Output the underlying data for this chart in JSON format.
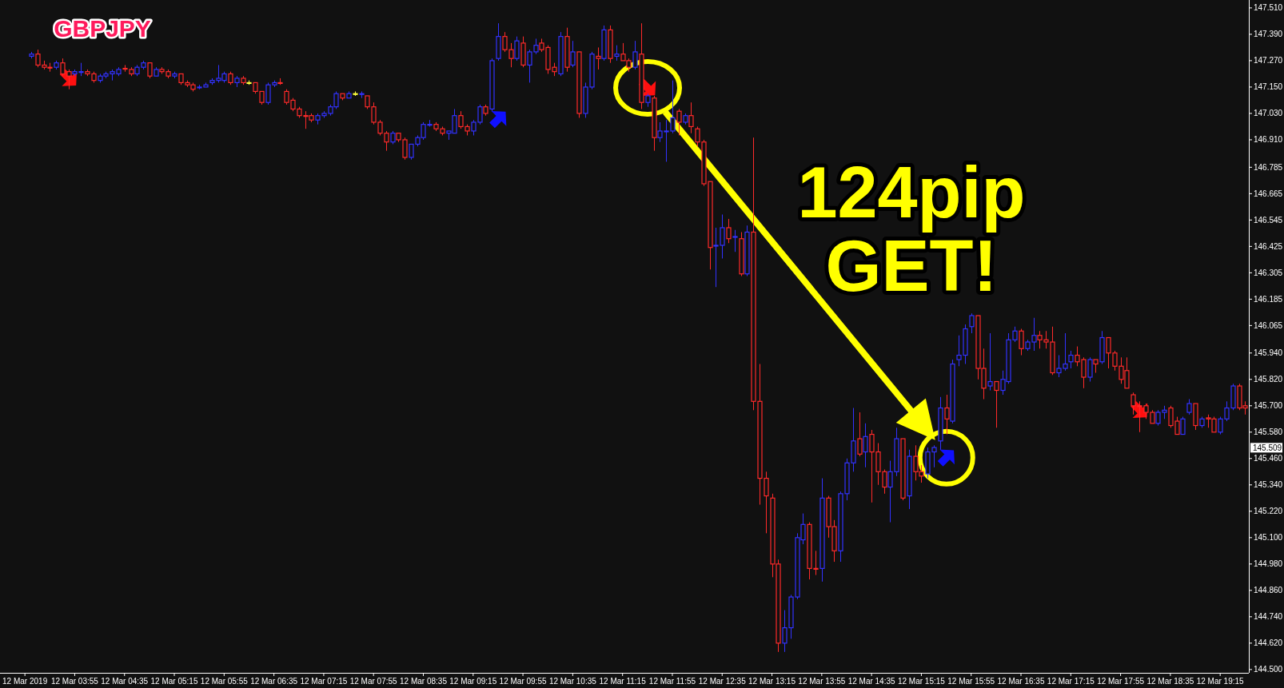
{
  "chart_data": {
    "type": "candlestick",
    "title": "GBPJPY",
    "annotations": [
      "124pip\nGET!",
      {
        "text": "145.509",
        "y": 145.509
      }
    ],
    "x": [
      "2019-03-12T03:20",
      "2019-03-12T03:25",
      "2019-03-12T03:30",
      "2019-03-12T03:35",
      "2019-03-12T03:40",
      "2019-03-12T03:45",
      "2019-03-12T03:50",
      "2019-03-12T03:55",
      "2019-03-12T04:00",
      "2019-03-12T04:05",
      "2019-03-12T04:10",
      "2019-03-12T04:15",
      "2019-03-12T04:20",
      "2019-03-12T04:25",
      "2019-03-12T04:30",
      "2019-03-12T04:35",
      "2019-03-12T04:40",
      "2019-03-12T04:45",
      "2019-03-12T04:50",
      "2019-03-12T04:55",
      "2019-03-12T05:00",
      "2019-03-12T05:05",
      "2019-03-12T05:10",
      "2019-03-12T05:15",
      "2019-03-12T05:20",
      "2019-03-12T05:25",
      "2019-03-12T05:30",
      "2019-03-12T05:35",
      "2019-03-12T05:40",
      "2019-03-12T05:45",
      "2019-03-12T05:50",
      "2019-03-12T05:55",
      "2019-03-12T06:00",
      "2019-03-12T06:05",
      "2019-03-12T06:10",
      "2019-03-12T06:15",
      "2019-03-12T06:20",
      "2019-03-12T06:25",
      "2019-03-12T06:30",
      "2019-03-12T06:35",
      "2019-03-12T06:40",
      "2019-03-12T06:45",
      "2019-03-12T06:50",
      "2019-03-12T06:55",
      "2019-03-12T07:00",
      "2019-03-12T07:05",
      "2019-03-12T07:10",
      "2019-03-12T07:15",
      "2019-03-12T07:20",
      "2019-03-12T07:25",
      "2019-03-12T07:30",
      "2019-03-12T07:35",
      "2019-03-12T07:40",
      "2019-03-12T07:45",
      "2019-03-12T07:50",
      "2019-03-12T07:55",
      "2019-03-12T08:00",
      "2019-03-12T08:05",
      "2019-03-12T08:10",
      "2019-03-12T08:15",
      "2019-03-12T08:20",
      "2019-03-12T08:25",
      "2019-03-12T08:30",
      "2019-03-12T08:35",
      "2019-03-12T08:40",
      "2019-03-12T08:45",
      "2019-03-12T08:50",
      "2019-03-12T08:55",
      "2019-03-12T09:00",
      "2019-03-12T09:05",
      "2019-03-12T09:10",
      "2019-03-12T09:15",
      "2019-03-12T09:20",
      "2019-03-12T09:25",
      "2019-03-12T09:30",
      "2019-03-12T09:35",
      "2019-03-12T09:40",
      "2019-03-12T09:45",
      "2019-03-12T09:50",
      "2019-03-12T09:55",
      "2019-03-12T10:00",
      "2019-03-12T10:05",
      "2019-03-12T10:10",
      "2019-03-12T10:15",
      "2019-03-12T10:20",
      "2019-03-12T10:25",
      "2019-03-12T10:30",
      "2019-03-12T10:35",
      "2019-03-12T10:40",
      "2019-03-12T10:45",
      "2019-03-12T10:50",
      "2019-03-12T10:55",
      "2019-03-12T11:00",
      "2019-03-12T11:05",
      "2019-03-12T11:10",
      "2019-03-12T11:15",
      "2019-03-12T11:20",
      "2019-03-12T11:25",
      "2019-03-12T11:30",
      "2019-03-12T11:35",
      "2019-03-12T11:40",
      "2019-03-12T11:45",
      "2019-03-12T11:50",
      "2019-03-12T11:55",
      "2019-03-12T12:00",
      "2019-03-12T12:05",
      "2019-03-12T12:10",
      "2019-03-12T12:15",
      "2019-03-12T12:20",
      "2019-03-12T12:25",
      "2019-03-12T12:30",
      "2019-03-12T12:35",
      "2019-03-12T12:40",
      "2019-03-12T12:45",
      "2019-03-12T12:50",
      "2019-03-12T12:55",
      "2019-03-12T13:00",
      "2019-03-12T13:05",
      "2019-03-12T13:10",
      "2019-03-12T13:15",
      "2019-03-12T13:20",
      "2019-03-12T13:25",
      "2019-03-12T13:30",
      "2019-03-12T13:35",
      "2019-03-12T13:40",
      "2019-03-12T13:45",
      "2019-03-12T13:50",
      "2019-03-12T13:55",
      "2019-03-12T14:00",
      "2019-03-12T14:05",
      "2019-03-12T14:10",
      "2019-03-12T14:15",
      "2019-03-12T14:20",
      "2019-03-12T14:25",
      "2019-03-12T14:30",
      "2019-03-12T14:35",
      "2019-03-12T14:40",
      "2019-03-12T14:45",
      "2019-03-12T14:50",
      "2019-03-12T14:55",
      "2019-03-12T15:00",
      "2019-03-12T15:05",
      "2019-03-12T15:10",
      "2019-03-12T15:15",
      "2019-03-12T15:20",
      "2019-03-12T15:25",
      "2019-03-12T15:30",
      "2019-03-12T15:35",
      "2019-03-12T15:40",
      "2019-03-12T15:45",
      "2019-03-12T15:50",
      "2019-03-12T15:55",
      "2019-03-12T16:00",
      "2019-03-12T16:05",
      "2019-03-12T16:10",
      "2019-03-12T16:15",
      "2019-03-12T16:20",
      "2019-03-12T16:25",
      "2019-03-12T16:30",
      "2019-03-12T16:35",
      "2019-03-12T16:40",
      "2019-03-12T16:45",
      "2019-03-12T16:50",
      "2019-03-12T16:55",
      "2019-03-12T17:00",
      "2019-03-12T17:05",
      "2019-03-12T17:10",
      "2019-03-12T17:15",
      "2019-03-12T17:20",
      "2019-03-12T17:25",
      "2019-03-12T17:30",
      "2019-03-12T17:35",
      "2019-03-12T17:40",
      "2019-03-12T17:45",
      "2019-03-12T17:50",
      "2019-03-12T17:55",
      "2019-03-12T18:00",
      "2019-03-12T18:05",
      "2019-03-12T18:10",
      "2019-03-12T18:15",
      "2019-03-12T18:20",
      "2019-03-12T18:25",
      "2019-03-12T18:30",
      "2019-03-12T18:35",
      "2019-03-12T18:40",
      "2019-03-12T18:45",
      "2019-03-12T18:50",
      "2019-03-12T18:55",
      "2019-03-12T19:00",
      "2019-03-12T19:05",
      "2019-03-12T19:10",
      "2019-03-12T19:15",
      "2019-03-12T19:20",
      "2019-03-12T19:25",
      "2019-03-12T19:30",
      "2019-03-12T19:35"
    ],
    "ohlc": [
      [
        147.29,
        147.31,
        147.28,
        147.3
      ],
      [
        147.3,
        147.32,
        147.24,
        147.25
      ],
      [
        147.25,
        147.27,
        147.23,
        147.24
      ],
      [
        147.24,
        147.26,
        147.22,
        147.24
      ],
      [
        147.24,
        147.27,
        147.23,
        147.26
      ],
      [
        147.26,
        147.28,
        147.2,
        147.21
      ],
      [
        147.22,
        147.23,
        147.14,
        147.2
      ],
      [
        147.21,
        147.23,
        147.2,
        147.22
      ],
      [
        147.22,
        147.26,
        147.2,
        147.22
      ],
      [
        147.22,
        147.23,
        147.2,
        147.21
      ],
      [
        147.21,
        147.22,
        147.17,
        147.18
      ],
      [
        147.18,
        147.21,
        147.17,
        147.2
      ],
      [
        147.2,
        147.22,
        147.19,
        147.21
      ],
      [
        147.21,
        147.23,
        147.18,
        147.22
      ],
      [
        147.21,
        147.24,
        147.2,
        147.23
      ],
      [
        147.235,
        147.25,
        147.22,
        147.235
      ],
      [
        147.23,
        147.24,
        147.2,
        147.21
      ],
      [
        147.21,
        147.25,
        147.2,
        147.24
      ],
      [
        147.24,
        147.27,
        147.23,
        147.26
      ],
      [
        147.26,
        147.26,
        147.19,
        147.2
      ],
      [
        147.2,
        147.24,
        147.2,
        147.23
      ],
      [
        147.23,
        147.24,
        147.21,
        147.22
      ],
      [
        147.22,
        147.23,
        147.19,
        147.2
      ],
      [
        147.2,
        147.22,
        147.19,
        147.21
      ],
      [
        147.21,
        147.21,
        147.16,
        147.17
      ],
      [
        147.17,
        147.18,
        147.15,
        147.16
      ],
      [
        147.16,
        147.17,
        147.13,
        147.14
      ],
      [
        147.15,
        147.16,
        147.14,
        147.15
      ],
      [
        147.15,
        147.17,
        147.15,
        147.16
      ],
      [
        147.17,
        147.19,
        147.16,
        147.18
      ],
      [
        147.18,
        147.25,
        147.17,
        147.19
      ],
      [
        147.18,
        147.22,
        147.17,
        147.21
      ],
      [
        147.21,
        147.22,
        147.16,
        147.17
      ],
      [
        147.17,
        147.2,
        147.15,
        147.19
      ],
      [
        147.19,
        147.2,
        147.16,
        147.17
      ],
      [
        147.17,
        147.18,
        147.16,
        147.17
      ],
      [
        147.17,
        147.17,
        147.12,
        147.13
      ],
      [
        147.13,
        147.13,
        147.07,
        147.08
      ],
      [
        147.08,
        147.17,
        147.07,
        147.16
      ],
      [
        147.16,
        147.18,
        147.15,
        147.17
      ],
      [
        147.17,
        147.19,
        147.16,
        147.17
      ],
      [
        147.13,
        147.14,
        147.07,
        147.08
      ],
      [
        147.09,
        147.1,
        147.04,
        147.05
      ],
      [
        147.05,
        147.06,
        147.01,
        147.02
      ],
      [
        147.02,
        147.04,
        146.96,
        147.02
      ],
      [
        147.02,
        147.03,
        146.99,
        147.0
      ],
      [
        147.0,
        147.03,
        146.98,
        147.02
      ],
      [
        147.02,
        147.04,
        147.01,
        147.03
      ],
      [
        147.03,
        147.07,
        147.02,
        147.06
      ],
      [
        147.06,
        147.13,
        147.05,
        147.12
      ],
      [
        147.12,
        147.12,
        147.09,
        147.1
      ],
      [
        147.1,
        147.13,
        147.1,
        147.12
      ],
      [
        147.12,
        147.13,
        147.11,
        147.12
      ],
      [
        147.12,
        147.13,
        147.1,
        147.12
      ],
      [
        147.11,
        147.11,
        147.05,
        147.06
      ],
      [
        147.06,
        147.08,
        146.98,
        146.99
      ],
      [
        146.99,
        147.0,
        146.93,
        146.94
      ],
      [
        146.94,
        146.95,
        146.86,
        146.9
      ],
      [
        146.9,
        146.95,
        146.89,
        146.94
      ],
      [
        146.94,
        146.94,
        146.9,
        146.91
      ],
      [
        146.91,
        146.92,
        146.82,
        146.83
      ],
      [
        146.83,
        146.89,
        146.82,
        146.89
      ],
      [
        146.89,
        146.93,
        146.88,
        146.92
      ],
      [
        146.92,
        146.99,
        146.91,
        146.98
      ],
      [
        146.98,
        147.0,
        146.97,
        146.98
      ],
      [
        146.98,
        146.99,
        146.95,
        146.96
      ],
      [
        146.96,
        146.97,
        146.93,
        146.94
      ],
      [
        146.94,
        146.95,
        146.91,
        146.95
      ],
      [
        146.94,
        147.05,
        146.94,
        147.02
      ],
      [
        147.02,
        147.04,
        146.96,
        146.97
      ],
      [
        146.97,
        146.98,
        146.93,
        146.95
      ],
      [
        146.95,
        147.0,
        146.93,
        146.99
      ],
      [
        146.99,
        147.07,
        146.98,
        147.06
      ],
      [
        147.06,
        147.07,
        147.02,
        147.03
      ],
      [
        147.05,
        147.28,
        147.04,
        147.27
      ],
      [
        147.28,
        147.44,
        147.27,
        147.38
      ],
      [
        147.38,
        147.4,
        147.31,
        147.32
      ],
      [
        147.32,
        147.35,
        147.24,
        147.28
      ],
      [
        147.28,
        147.38,
        147.27,
        147.36
      ],
      [
        147.35,
        147.38,
        147.24,
        147.25
      ],
      [
        147.25,
        147.32,
        147.17,
        147.31
      ],
      [
        147.31,
        147.37,
        147.3,
        147.34
      ],
      [
        147.35,
        147.37,
        147.31,
        147.32
      ],
      [
        147.33,
        147.34,
        147.21,
        147.23
      ],
      [
        147.24,
        147.26,
        147.2,
        147.22
      ],
      [
        147.21,
        147.4,
        147.2,
        147.38
      ],
      [
        147.38,
        147.42,
        147.22,
        147.24
      ],
      [
        147.25,
        147.36,
        147.24,
        147.31
      ],
      [
        147.31,
        147.31,
        147.01,
        147.03
      ],
      [
        147.03,
        147.17,
        147.01,
        147.15
      ],
      [
        147.15,
        147.31,
        147.14,
        147.3
      ],
      [
        147.29,
        147.33,
        147.23,
        147.28
      ],
      [
        147.28,
        147.43,
        147.27,
        147.41
      ],
      [
        147.41,
        147.43,
        147.26,
        147.28
      ],
      [
        147.29,
        147.34,
        147.27,
        147.3
      ],
      [
        147.3,
        147.35,
        147.27,
        147.27
      ],
      [
        147.27,
        147.28,
        147.22,
        147.24
      ],
      [
        147.24,
        147.36,
        147.23,
        147.31
      ],
      [
        147.3,
        147.44,
        147.05,
        147.08
      ],
      [
        147.08,
        147.12,
        147.06,
        147.11
      ],
      [
        147.1,
        147.11,
        146.86,
        146.92
      ],
      [
        146.92,
        146.99,
        146.9,
        146.95
      ],
      [
        146.95,
        147.0,
        146.81,
        146.95
      ],
      [
        146.95,
        147.18,
        146.94,
        147.01
      ],
      [
        147.04,
        147.05,
        146.93,
        146.99
      ],
      [
        146.99,
        147.03,
        146.98,
        147.02
      ],
      [
        147.02,
        147.08,
        146.94,
        146.97
      ],
      [
        146.96,
        146.97,
        146.88,
        146.9
      ],
      [
        146.9,
        146.91,
        146.7,
        146.71
      ],
      [
        146.72,
        146.72,
        146.32,
        146.42
      ],
      [
        146.43,
        146.51,
        146.24,
        146.43
      ],
      [
        146.43,
        146.57,
        146.37,
        146.51
      ],
      [
        146.51,
        146.55,
        146.44,
        146.46
      ],
      [
        146.47,
        146.5,
        146.4,
        146.47
      ],
      [
        146.46,
        146.49,
        146.29,
        146.3
      ],
      [
        146.3,
        146.52,
        146.29,
        146.49
      ],
      [
        146.49,
        146.92,
        145.68,
        145.72
      ],
      [
        145.72,
        145.89,
        145.25,
        145.37
      ],
      [
        145.37,
        145.4,
        145.12,
        145.29
      ],
      [
        145.28,
        145.3,
        144.92,
        144.98
      ],
      [
        144.98,
        145.0,
        144.58,
        144.62
      ],
      [
        144.62,
        144.77,
        144.58,
        144.69
      ],
      [
        144.69,
        144.84,
        144.64,
        144.83
      ],
      [
        144.83,
        145.12,
        144.82,
        145.1
      ],
      [
        145.09,
        145.21,
        145.07,
        145.16
      ],
      [
        145.16,
        145.17,
        144.91,
        144.96
      ],
      [
        144.96,
        145.04,
        144.93,
        144.96
      ],
      [
        144.96,
        145.37,
        144.9,
        145.28
      ],
      [
        145.28,
        145.29,
        145.1,
        145.15
      ],
      [
        145.15,
        145.18,
        144.99,
        145.04
      ],
      [
        145.04,
        145.31,
        144.99,
        145.3
      ],
      [
        145.3,
        145.46,
        145.27,
        145.44
      ],
      [
        145.44,
        145.69,
        145.4,
        145.54
      ],
      [
        145.55,
        145.67,
        145.47,
        145.48
      ],
      [
        145.49,
        145.62,
        145.42,
        145.56
      ],
      [
        145.57,
        145.59,
        145.26,
        145.49
      ],
      [
        145.49,
        145.53,
        145.34,
        145.4
      ],
      [
        145.4,
        145.41,
        145.3,
        145.33
      ],
      [
        145.33,
        145.45,
        145.17,
        145.4
      ],
      [
        145.4,
        145.6,
        145.38,
        145.55
      ],
      [
        145.55,
        145.55,
        145.27,
        145.28
      ],
      [
        145.29,
        145.5,
        145.23,
        145.47
      ],
      [
        145.47,
        145.52,
        145.36,
        145.4
      ],
      [
        145.4,
        145.43,
        145.35,
        145.38
      ],
      [
        145.39,
        145.51,
        145.37,
        145.49
      ],
      [
        145.49,
        145.52,
        145.42,
        145.51
      ],
      [
        145.54,
        145.74,
        145.5,
        145.69
      ],
      [
        145.69,
        145.75,
        145.57,
        145.64
      ],
      [
        145.63,
        145.91,
        145.62,
        145.89
      ],
      [
        145.91,
        146.02,
        145.88,
        145.93
      ],
      [
        145.93,
        146.07,
        145.89,
        146.05
      ],
      [
        146.06,
        146.12,
        146.03,
        146.11
      ],
      [
        146.11,
        146.11,
        145.82,
        145.87
      ],
      [
        145.87,
        145.96,
        145.73,
        145.78
      ],
      [
        145.79,
        146.03,
        145.77,
        145.81
      ],
      [
        145.81,
        145.81,
        145.6,
        145.77
      ],
      [
        145.77,
        145.86,
        145.75,
        145.82
      ],
      [
        145.81,
        146.03,
        145.8,
        146.0
      ],
      [
        146.0,
        146.06,
        145.99,
        146.04
      ],
      [
        146.04,
        146.05,
        145.93,
        145.96
      ],
      [
        145.96,
        146.0,
        145.95,
        145.99
      ],
      [
        145.99,
        146.1,
        145.95,
        146.02
      ],
      [
        146.02,
        146.04,
        145.96,
        146.0
      ],
      [
        146.0,
        146.04,
        145.96,
        145.99
      ],
      [
        145.99,
        146.06,
        145.84,
        145.85
      ],
      [
        145.85,
        145.93,
        145.83,
        145.87
      ],
      [
        145.87,
        146.03,
        145.86,
        145.89
      ],
      [
        145.9,
        145.95,
        145.87,
        145.93
      ],
      [
        145.93,
        145.97,
        145.88,
        145.9
      ],
      [
        145.91,
        145.92,
        145.78,
        145.83
      ],
      [
        145.83,
        145.92,
        145.81,
        145.91
      ],
      [
        145.91,
        145.91,
        145.85,
        145.89
      ],
      [
        145.9,
        146.04,
        145.89,
        146.01
      ],
      [
        146.01,
        146.01,
        145.87,
        145.94
      ],
      [
        145.94,
        145.95,
        145.86,
        145.88
      ],
      [
        145.88,
        145.92,
        145.8,
        145.82
      ],
      [
        145.86,
        145.92,
        145.78,
        145.78
      ],
      [
        145.75,
        145.76,
        145.66,
        145.7
      ],
      [
        145.7,
        145.72,
        145.58,
        145.7
      ],
      [
        145.7,
        145.71,
        145.64,
        145.67
      ],
      [
        145.67,
        145.68,
        145.62,
        145.62
      ],
      [
        145.62,
        145.68,
        145.61,
        145.67
      ],
      [
        145.67,
        145.7,
        145.64,
        145.68
      ],
      [
        145.69,
        145.7,
        145.6,
        145.61
      ],
      [
        145.63,
        145.65,
        145.57,
        145.57
      ],
      [
        145.57,
        145.65,
        145.57,
        145.64
      ],
      [
        145.67,
        145.73,
        145.66,
        145.71
      ],
      [
        145.71,
        145.71,
        145.59,
        145.61
      ],
      [
        145.61,
        145.65,
        145.6,
        145.64
      ],
      [
        145.645,
        145.66,
        145.6,
        145.64
      ],
      [
        145.64,
        145.65,
        145.58,
        145.58
      ],
      [
        145.58,
        145.65,
        145.57,
        145.64
      ],
      [
        145.64,
        145.72,
        145.63,
        145.69
      ],
      [
        145.69,
        145.8,
        145.68,
        145.79
      ],
      [
        145.79,
        145.8,
        145.68,
        145.69
      ],
      [
        145.7,
        145.72,
        145.66,
        145.69
      ]
    ],
    "colors": [
      "#3232ff",
      "#ff2a2a",
      "#ff2a2a",
      "#ff2a2a",
      "#3232ff",
      "#ff2a2a",
      "#ff2a2a",
      "#3232ff",
      "#3232ff",
      "#ff2a2a",
      "#ff2a2a",
      "#3232ff",
      "#3232ff",
      "#3232ff",
      "#3232ff",
      "#ff2a2a",
      "#ff2a2a",
      "#3232ff",
      "#3232ff",
      "#ff2a2a",
      "#3232ff",
      "#ff2a2a",
      "#ff2a2a",
      "#3232ff",
      "#ff2a2a",
      "#ff2a2a",
      "#ff2a2a",
      "#3232ff",
      "#3232ff",
      "#3232ff",
      "#3232ff",
      "#3232ff",
      "#ff2a2a",
      "#3232ff",
      "#ff2a2a",
      "#ffff40",
      "#ff2a2a",
      "#ff2a2a",
      "#3232ff",
      "#3232ff",
      "#ff2a2a",
      "#ff2a2a",
      "#ff2a2a",
      "#ff2a2a",
      "#ff2a2a",
      "#ff2a2a",
      "#3232ff",
      "#3232ff",
      "#3232ff",
      "#3232ff",
      "#ff2a2a",
      "#3232ff",
      "#ffff40",
      "#3232ff",
      "#ff2a2a",
      "#ff2a2a",
      "#ff2a2a",
      "#ff2a2a",
      "#3232ff",
      "#ff2a2a",
      "#ff2a2a",
      "#3232ff",
      "#3232ff",
      "#3232ff",
      "#3232ff",
      "#ff2a2a",
      "#ff2a2a",
      "#3232ff",
      "#3232ff",
      "#ff2a2a",
      "#ff2a2a",
      "#3232ff",
      "#3232ff",
      "#ff2a2a",
      "#3232ff",
      "#3232ff",
      "#ff2a2a",
      "#ff2a2a",
      "#3232ff",
      "#ff2a2a",
      "#3232ff",
      "#3232ff",
      "#ff2a2a",
      "#ff2a2a",
      "#ff2a2a",
      "#3232ff",
      "#ff2a2a",
      "#3232ff",
      "#ff2a2a",
      "#3232ff",
      "#3232ff",
      "#ff2a2a",
      "#3232ff",
      "#ff2a2a",
      "#3232ff",
      "#ff2a2a",
      "#ff2a2a",
      "#3232ff",
      "#ff2a2a",
      "#3232ff",
      "#ff2a2a",
      "#3232ff",
      "#3232ff",
      "#3232ff",
      "#ff2a2a",
      "#3232ff",
      "#ff2a2a",
      "#ff2a2a",
      "#ff2a2a",
      "#ff2a2a",
      "#3232ff",
      "#3232ff",
      "#ff2a2a",
      "#3232ff",
      "#ff2a2a",
      "#3232ff",
      "#ff2a2a",
      "#ff2a2a",
      "#ff2a2a",
      "#ff2a2a",
      "#ff2a2a",
      "#3232ff",
      "#3232ff",
      "#3232ff",
      "#3232ff",
      "#ff2a2a",
      "#ff2a2a",
      "#3232ff",
      "#ff2a2a",
      "#ff2a2a",
      "#3232ff",
      "#3232ff",
      "#3232ff",
      "#ff2a2a",
      "#3232ff",
      "#ff2a2a",
      "#ff2a2a",
      "#ff2a2a",
      "#3232ff",
      "#3232ff",
      "#ff2a2a",
      "#3232ff",
      "#ff2a2a",
      "#ff2a2a",
      "#3232ff",
      "#3232ff",
      "#3232ff",
      "#ff2a2a",
      "#3232ff",
      "#3232ff",
      "#3232ff",
      "#3232ff",
      "#ff2a2a",
      "#ff2a2a",
      "#3232ff",
      "#ff2a2a",
      "#3232ff",
      "#3232ff",
      "#3232ff",
      "#ff2a2a",
      "#3232ff",
      "#3232ff",
      "#ff2a2a",
      "#ff2a2a",
      "#ff2a2a",
      "#3232ff",
      "#3232ff",
      "#3232ff",
      "#ff2a2a",
      "#ff2a2a",
      "#3232ff",
      "#ff2a2a",
      "#3232ff",
      "#ff2a2a",
      "#ff2a2a",
      "#ff2a2a",
      "#ff2a2a",
      "#ff2a2a",
      "#ff2a2a",
      "#ff2a2a",
      "#ff2a2a",
      "#3232ff",
      "#3232ff",
      "#ff2a2a",
      "#ff2a2a",
      "#3232ff",
      "#3232ff",
      "#ff2a2a",
      "#3232ff",
      "#ff2a2a",
      "#ff2a2a",
      "#3232ff",
      "#3232ff",
      "#3232ff",
      "#ff2a2a",
      "#ff2a2a"
    ],
    "xlim": [
      "2019-03-12T02:55",
      "2019-03-12T19:38"
    ],
    "xticks": [
      {
        "value": "2019-03-12T03:15",
        "label": "12 Mar 2019"
      },
      {
        "value": "2019-03-12T03:55",
        "label": "12 Mar 03:55"
      },
      {
        "value": "2019-03-12T04:35",
        "label": "12 Mar 04:35"
      },
      {
        "value": "2019-03-12T05:15",
        "label": "12 Mar 05:15"
      },
      {
        "value": "2019-03-12T05:55",
        "label": "12 Mar 05:55"
      },
      {
        "value": "2019-03-12T06:35",
        "label": "12 Mar 06:35"
      },
      {
        "value": "2019-03-12T07:15",
        "label": "12 Mar 07:15"
      },
      {
        "value": "2019-03-12T07:55",
        "label": "12 Mar 07:55"
      },
      {
        "value": "2019-03-12T08:35",
        "label": "12 Mar 08:35"
      },
      {
        "value": "2019-03-12T09:15",
        "label": "12 Mar 09:15"
      },
      {
        "value": "2019-03-12T09:55",
        "label": "12 Mar 09:55"
      },
      {
        "value": "2019-03-12T10:35",
        "label": "12 Mar 10:35"
      },
      {
        "value": "2019-03-12T11:15",
        "label": "12 Mar 11:15"
      },
      {
        "value": "2019-03-12T11:55",
        "label": "12 Mar 11:55"
      },
      {
        "value": "2019-03-12T12:35",
        "label": "12 Mar 12:35"
      },
      {
        "value": "2019-03-12T13:15",
        "label": "12 Mar 13:15"
      },
      {
        "value": "2019-03-12T13:55",
        "label": "12 Mar 13:55"
      },
      {
        "value": "2019-03-12T14:35",
        "label": "12 Mar 14:35"
      },
      {
        "value": "2019-03-12T15:15",
        "label": "12 Mar 15:15"
      },
      {
        "value": "2019-03-12T15:55",
        "label": "12 Mar 15:55"
      },
      {
        "value": "2019-03-12T16:35",
        "label": "12 Mar 16:35"
      },
      {
        "value": "2019-03-12T17:15",
        "label": "12 Mar 17:15"
      },
      {
        "value": "2019-03-12T17:55",
        "label": "12 Mar 17:55"
      },
      {
        "value": "2019-03-12T18:35",
        "label": "12 Mar 18:35"
      },
      {
        "value": "2019-03-12T19:15",
        "label": "12 Mar 19:15"
      }
    ],
    "ylim": [
      144.485,
      147.546
    ],
    "yticks": [
      {
        "value": 147.51,
        "label": "147.510"
      },
      {
        "value": 147.39,
        "label": "147.390"
      },
      {
        "value": 147.27,
        "label": "147.270"
      },
      {
        "value": 147.15,
        "label": "147.150"
      },
      {
        "value": 147.03,
        "label": "147.030"
      },
      {
        "value": 146.91,
        "label": "146.910"
      },
      146.785,
      146.665,
      146.545,
      146.425,
      146.305,
      146.185,
      146.065,
      {
        "value": 145.94,
        "label": "145.940"
      },
      {
        "value": 145.82,
        "label": "145.820"
      },
      {
        "value": 145.7,
        "label": "145.700"
      },
      {
        "value": 145.58,
        "label": "145.580"
      },
      {
        "value": 145.46,
        "label": "145.460"
      },
      {
        "value": 145.34,
        "label": "145.340"
      },
      {
        "value": 145.22,
        "label": "145.220"
      },
      {
        "value": 145.1,
        "label": "145.100"
      },
      {
        "value": 144.98,
        "label": "144.980"
      },
      {
        "value": 144.86,
        "label": "144.860"
      },
      {
        "value": 144.74,
        "label": "144.740"
      },
      {
        "value": 144.62,
        "label": "144.620"
      },
      {
        "value": 144.5,
        "label": "144.500"
      }
    ]
  }
}
